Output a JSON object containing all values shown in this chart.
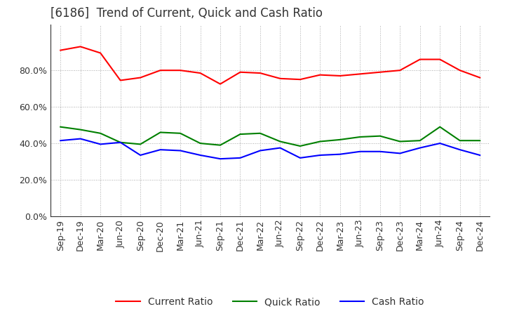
{
  "title": "[6186]  Trend of Current, Quick and Cash Ratio",
  "x_labels": [
    "Sep-19",
    "Dec-19",
    "Mar-20",
    "Jun-20",
    "Sep-20",
    "Dec-20",
    "Mar-21",
    "Jun-21",
    "Sep-21",
    "Dec-21",
    "Mar-22",
    "Jun-22",
    "Sep-22",
    "Dec-22",
    "Mar-23",
    "Jun-23",
    "Sep-23",
    "Dec-23",
    "Mar-24",
    "Jun-24",
    "Sep-24",
    "Dec-24"
  ],
  "current_ratio": [
    0.91,
    0.93,
    0.895,
    0.745,
    0.76,
    0.8,
    0.8,
    0.785,
    0.725,
    0.79,
    0.785,
    0.755,
    0.75,
    0.775,
    0.77,
    0.78,
    0.79,
    0.8,
    0.86,
    0.86,
    0.8,
    0.76
  ],
  "quick_ratio": [
    0.49,
    0.475,
    0.455,
    0.405,
    0.395,
    0.46,
    0.455,
    0.4,
    0.39,
    0.45,
    0.455,
    0.41,
    0.385,
    0.41,
    0.42,
    0.435,
    0.44,
    0.41,
    0.415,
    0.49,
    0.415,
    0.415
  ],
  "cash_ratio": [
    0.415,
    0.425,
    0.395,
    0.405,
    0.335,
    0.365,
    0.36,
    0.335,
    0.315,
    0.32,
    0.36,
    0.375,
    0.32,
    0.335,
    0.34,
    0.355,
    0.355,
    0.345,
    0.375,
    0.4,
    0.365,
    0.335
  ],
  "current_color": "#FF0000",
  "quick_color": "#008000",
  "cash_color": "#0000FF",
  "ylim": [
    0.0,
    1.05
  ],
  "yticks": [
    0.0,
    0.2,
    0.4,
    0.6,
    0.8
  ],
  "background_color": "#ffffff",
  "plot_bg_color": "#ffffff",
  "grid_color": "#aaaaaa",
  "title_fontsize": 12,
  "legend_fontsize": 10,
  "tick_fontsize": 9
}
